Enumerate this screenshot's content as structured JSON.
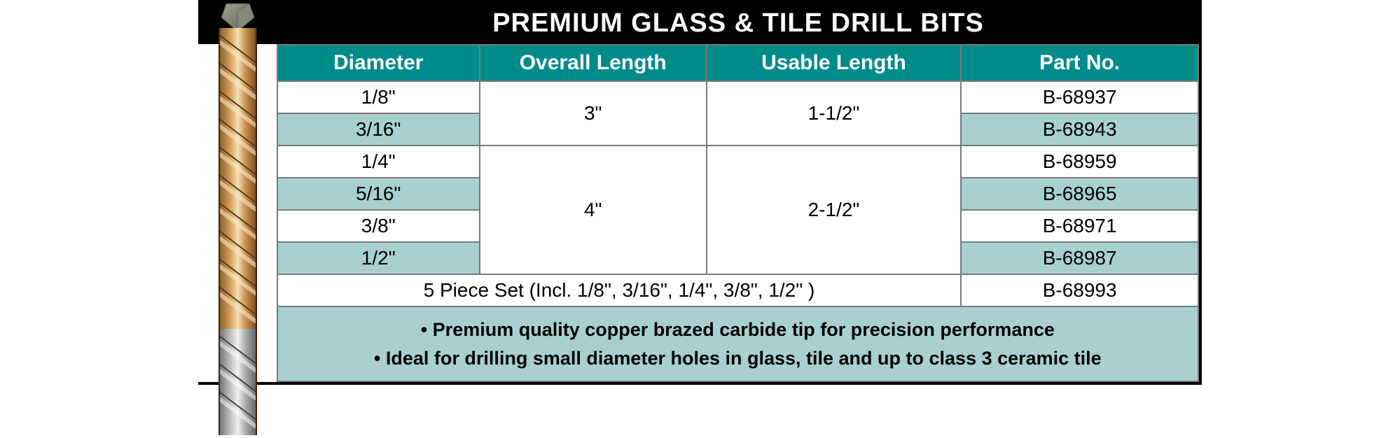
{
  "title": "PREMIUM GLASS & TILE DRILL BITS",
  "colors": {
    "header_bg": "#008b8b",
    "header_text": "#ffffff",
    "title_bg": "#000000",
    "title_text": "#ffffff",
    "row_alt_bg": "#a8d0d0",
    "row_white_bg": "#ffffff",
    "border": "#7a7a7a",
    "text": "#000000"
  },
  "columns": {
    "diameter": "Diameter",
    "overall_length": "Overall Length",
    "usable_length": "Usable Length",
    "part_no": "Part No."
  },
  "column_widths": {
    "spacer": 113,
    "diameter": 290,
    "overall": 325,
    "usable": 365,
    "part": 340
  },
  "groups": [
    {
      "overall_length": "3\"",
      "usable_length": "1-1/2\"",
      "rows": [
        {
          "diameter": "1/8\"",
          "part_no": "B-68937",
          "alt": false
        },
        {
          "diameter": "3/16\"",
          "part_no": "B-68943",
          "alt": true
        }
      ]
    },
    {
      "overall_length": "4\"",
      "usable_length": "2-1/2\"",
      "rows": [
        {
          "diameter": "1/4\"",
          "part_no": "B-68959",
          "alt": false
        },
        {
          "diameter": "5/16\"",
          "part_no": "B-68965",
          "alt": true
        },
        {
          "diameter": "3/8\"",
          "part_no": "B-68971",
          "alt": false
        },
        {
          "diameter": "1/2\"",
          "part_no": "B-68987",
          "alt": true
        }
      ]
    }
  ],
  "set_row": {
    "desc": "5 Piece Set (Incl. 1/8\", 3/16\", 1/4\", 3/8\", 1/2\" )",
    "part_no": "B-68993"
  },
  "footer": {
    "line1": "• Premium quality copper brazed carbide tip for precision performance",
    "line2": "• Ideal for drilling small diameter holes in glass, tile and up to class 3 ceramic tile"
  },
  "typography": {
    "title_fontsize": 38,
    "header_fontsize": 30,
    "cell_fontsize": 28,
    "footer_fontsize": 27
  }
}
